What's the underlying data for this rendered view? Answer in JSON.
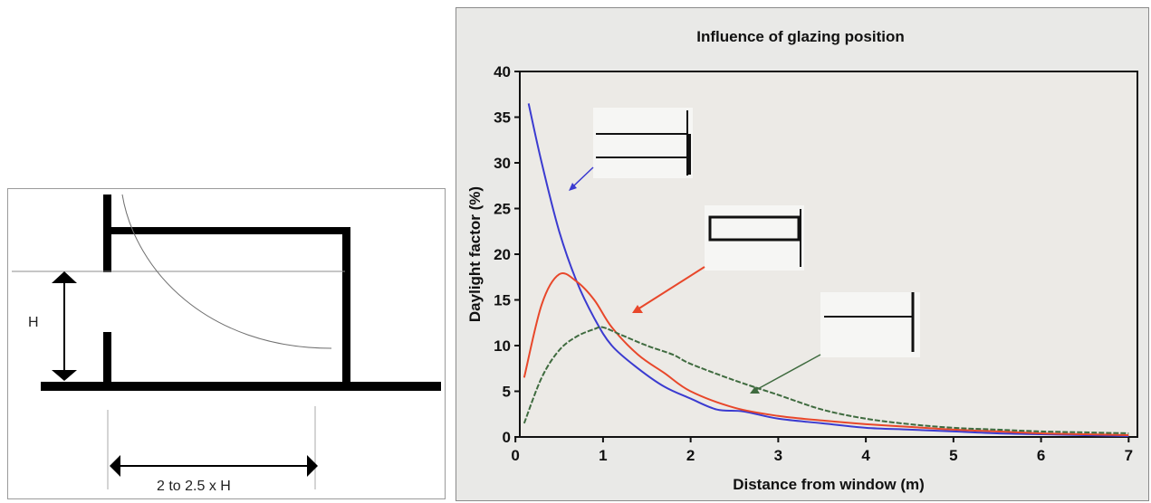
{
  "diagram": {
    "height_label": "H",
    "depth_label": "2 to 2.5 x H"
  },
  "chart_data": {
    "type": "line",
    "title": "Influence of glazing position",
    "xlabel": "Distance from window (m)",
    "ylabel": "Daylight factor (%)",
    "xlim": [
      0,
      7
    ],
    "ylim": [
      0,
      40
    ],
    "xticks": [
      0,
      1,
      2,
      3,
      4,
      5,
      6,
      7
    ],
    "yticks": [
      0,
      5,
      10,
      15,
      20,
      25,
      30,
      35,
      40
    ],
    "grid": false,
    "series": [
      {
        "color": "#3b3bd0",
        "glazing": "high window",
        "x": [
          0.15,
          0.3,
          0.5,
          0.7,
          0.9,
          1.1,
          1.4,
          1.7,
          2.0,
          2.3,
          2.6,
          3.0,
          3.5,
          4.0,
          4.5,
          5.0,
          5.5,
          6.0,
          6.5,
          7.0
        ],
        "y": [
          36.5,
          30,
          22.5,
          17,
          13,
          10,
          7.5,
          5.5,
          4.2,
          3.0,
          2.8,
          2.0,
          1.5,
          1.0,
          0.8,
          0.6,
          0.4,
          0.3,
          0.2,
          0.1
        ]
      },
      {
        "color": "#e8472a",
        "glazing": "mid-height window",
        "x": [
          0.1,
          0.3,
          0.5,
          0.7,
          0.9,
          1.1,
          1.4,
          1.7,
          2.0,
          2.5,
          3.0,
          3.5,
          4.0,
          4.5,
          5.0,
          5.5,
          6.0,
          6.5,
          7.0
        ],
        "y": [
          6.5,
          14.5,
          17.8,
          17.0,
          15.0,
          12.0,
          9.0,
          7.0,
          5.0,
          3.2,
          2.3,
          1.8,
          1.4,
          1.1,
          0.8,
          0.6,
          0.4,
          0.3,
          0.2
        ]
      },
      {
        "color": "#3f6b3f",
        "glazing": "low window",
        "x": [
          0.1,
          0.3,
          0.5,
          0.7,
          0.9,
          1.0,
          1.2,
          1.5,
          1.8,
          2.0,
          2.5,
          3.0,
          3.5,
          4.0,
          4.5,
          5.0,
          5.5,
          6.0,
          6.5,
          7.0
        ],
        "y": [
          1.5,
          6.5,
          9.5,
          11.0,
          11.8,
          12.0,
          11.2,
          10.0,
          9.0,
          8.0,
          6.2,
          4.6,
          3.0,
          2.0,
          1.4,
          1.0,
          0.8,
          0.6,
          0.5,
          0.4
        ]
      }
    ]
  }
}
